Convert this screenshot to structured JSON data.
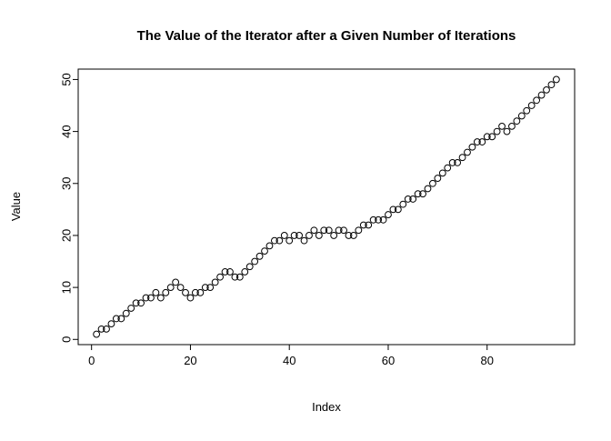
{
  "chart_data": {
    "type": "scatter",
    "title": "The Value of the Iterator after a Given Number of Iterations",
    "xlabel": "Index",
    "ylabel": "Value",
    "xlim": [
      -2.7,
      97.7
    ],
    "ylim": [
      -1,
      52
    ],
    "x_ticks": [
      0,
      20,
      40,
      60,
      80
    ],
    "y_ticks": [
      0,
      10,
      20,
      30,
      40,
      50
    ],
    "x_note": "x values are the index 1..N of the values array",
    "point_style": "open-circle",
    "point_color": "#000000",
    "background_color": "#ffffff",
    "grid": false,
    "legend": "none",
    "values": [
      1,
      2,
      2,
      3,
      4,
      4,
      5,
      6,
      7,
      7,
      8,
      8,
      9,
      8,
      9,
      10,
      11,
      10,
      9,
      8,
      9,
      9,
      10,
      10,
      11,
      12,
      13,
      13,
      12,
      12,
      13,
      14,
      15,
      16,
      17,
      18,
      19,
      19,
      20,
      19,
      20,
      20,
      19,
      20,
      21,
      20,
      21,
      21,
      20,
      21,
      21,
      20,
      20,
      21,
      22,
      22,
      23,
      23,
      23,
      24,
      25,
      25,
      26,
      27,
      27,
      28,
      28,
      29,
      30,
      31,
      32,
      33,
      34,
      34,
      35,
      36,
      37,
      38,
      38,
      39,
      39,
      40,
      41,
      40,
      41,
      42,
      43,
      44,
      45,
      46,
      47,
      48,
      49,
      50
    ]
  }
}
